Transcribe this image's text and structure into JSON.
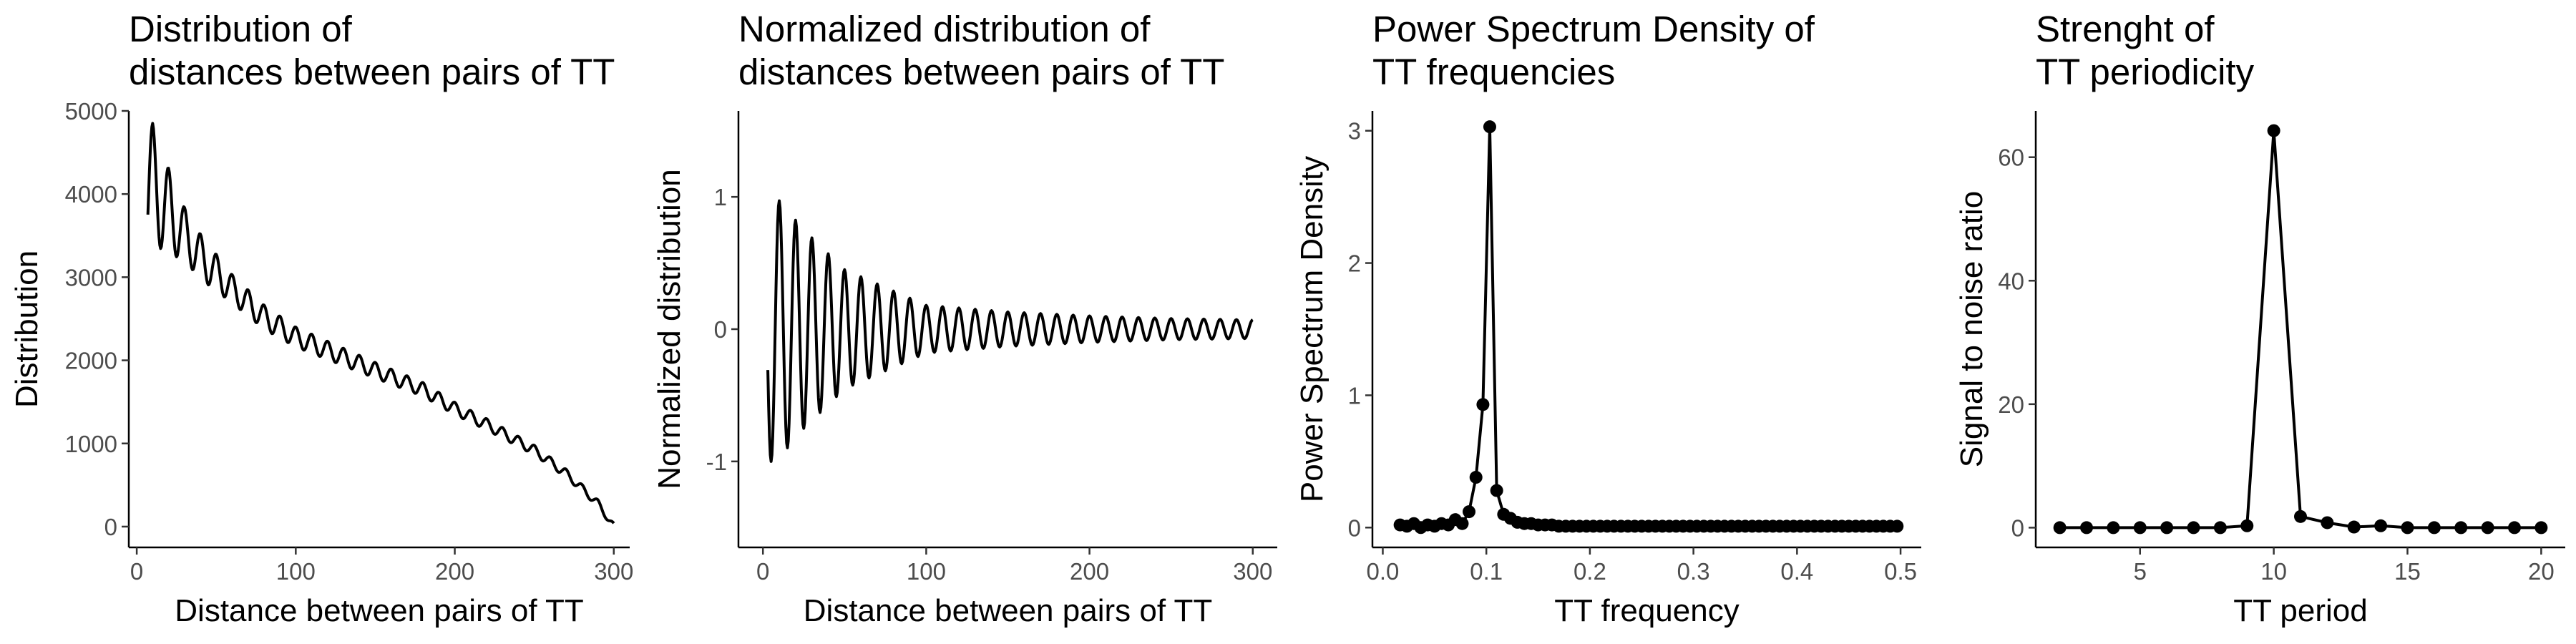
{
  "chart_data": [
    {
      "type": "line",
      "title": [
        "Distribution of",
        "distances between pairs of TT"
      ],
      "xlabel": "Distance between pairs of TT",
      "ylabel": "Distribution",
      "xlim": [
        -5,
        310
      ],
      "ylim": [
        -250,
        5000
      ],
      "xticks": [
        0,
        100,
        200,
        300
      ],
      "yticks": [
        0,
        1000,
        2000,
        3000,
        4000,
        5000
      ],
      "series": [
        {
          "trend_x": [
            7,
            10,
            15,
            20,
            30,
            40,
            60,
            80,
            100,
            120,
            150,
            180,
            200,
            220,
            250,
            270,
            290,
            300
          ],
          "trend_y": [
            4000,
            4150,
            3950,
            3800,
            3520,
            3250,
            2860,
            2520,
            2280,
            2120,
            1880,
            1650,
            1420,
            1230,
            920,
            640,
            280,
            0
          ],
          "oscillation": {
            "period": 10,
            "phase_x": 10,
            "amplitude_x": [
              7,
              10,
              30,
              60,
              100,
              150,
              200,
              260,
              300
            ],
            "amplitude_y": [
              800,
              700,
              320,
              170,
              120,
              95,
              75,
              55,
              40
            ]
          }
        }
      ]
    },
    {
      "type": "line",
      "title": [
        "Normalized distribution of",
        "distances between pairs of TT"
      ],
      "xlabel": "Distance between pairs of TT",
      "ylabel": "Normalized distribution",
      "xlim": [
        -15,
        315
      ],
      "ylim": [
        -1.65,
        1.65
      ],
      "xticks": [
        0,
        100,
        200,
        300
      ],
      "yticks": [
        -1,
        0,
        1
      ],
      "series": [
        {
          "trend_x": [
            3,
            300
          ],
          "trend_y": [
            0.0,
            0.0
          ],
          "oscillation": {
            "period": 10,
            "phase_x": 10,
            "amplitude_x": [
              3,
              8,
              25,
              50,
              100,
              150,
              200,
              250,
              300
            ],
            "amplitude_y": [
              1.0,
              1.0,
              0.75,
              0.45,
              0.18,
              0.13,
              0.1,
              0.08,
              0.07
            ]
          }
        }
      ]
    },
    {
      "type": "line",
      "title": [
        "Power Spectrum Density of",
        "TT frequencies"
      ],
      "xlabel": "TT frequency",
      "ylabel": "Power Spectrum Density",
      "xlim": [
        -0.01,
        0.52
      ],
      "ylim": [
        -0.15,
        3.15
      ],
      "xticks": [
        0.0,
        0.1,
        0.2,
        0.3,
        0.4,
        0.5
      ],
      "yticks": [
        0,
        1,
        2,
        3
      ],
      "markers": true,
      "series": [
        {
          "x": [
            0.0167,
            0.0233,
            0.03,
            0.0367,
            0.0433,
            0.05,
            0.0567,
            0.0633,
            0.07,
            0.0767,
            0.0833,
            0.09,
            0.0967,
            0.1033,
            0.11,
            0.1167,
            0.1233,
            0.13,
            0.1367,
            0.1433,
            0.15,
            0.1567,
            0.1633,
            0.17,
            0.1767,
            0.1833,
            0.19,
            0.1967,
            0.2033,
            0.21,
            0.2167,
            0.2233,
            0.23,
            0.2367,
            0.2433,
            0.25,
            0.2567,
            0.2633,
            0.27,
            0.2767,
            0.2833,
            0.29,
            0.2967,
            0.3033,
            0.31,
            0.3167,
            0.3233,
            0.33,
            0.3367,
            0.3433,
            0.35,
            0.3567,
            0.3633,
            0.37,
            0.3767,
            0.3833,
            0.39,
            0.3967,
            0.4033,
            0.41,
            0.4167,
            0.4233,
            0.43,
            0.4367,
            0.4433,
            0.45,
            0.4567,
            0.4633,
            0.47,
            0.4767,
            0.4833,
            0.49,
            0.4967
          ],
          "y": [
            0.02,
            0.01,
            0.03,
            0.0,
            0.02,
            0.01,
            0.03,
            0.02,
            0.06,
            0.03,
            0.12,
            0.38,
            0.93,
            3.03,
            0.28,
            0.1,
            0.07,
            0.04,
            0.03,
            0.03,
            0.02,
            0.02,
            0.02,
            0.01,
            0.01,
            0.01,
            0.01,
            0.01,
            0.01,
            0.01,
            0.01,
            0.01,
            0.01,
            0.01,
            0.01,
            0.01,
            0.01,
            0.01,
            0.01,
            0.01,
            0.01,
            0.01,
            0.01,
            0.01,
            0.01,
            0.01,
            0.01,
            0.01,
            0.01,
            0.01,
            0.01,
            0.01,
            0.01,
            0.01,
            0.01,
            0.01,
            0.01,
            0.01,
            0.01,
            0.01,
            0.01,
            0.01,
            0.01,
            0.01,
            0.01,
            0.01,
            0.01,
            0.01,
            0.01,
            0.01,
            0.01,
            0.01,
            0.01
          ]
        }
      ]
    },
    {
      "type": "line",
      "title": [
        "Strenght of",
        "TT periodicity"
      ],
      "xlabel": "TT period",
      "ylabel": "Signal to noise ratio",
      "xlim": [
        1.1,
        20.9
      ],
      "ylim": [
        -3.2,
        67.5
      ],
      "xticks": [
        5,
        10,
        15,
        20
      ],
      "yticks": [
        0,
        20,
        40,
        60
      ],
      "markers": true,
      "series": [
        {
          "x": [
            2,
            3,
            4,
            5,
            6,
            7,
            8,
            9,
            10,
            11,
            12,
            13,
            14,
            15,
            16,
            17,
            18,
            19,
            20
          ],
          "y": [
            0.0,
            0.0,
            0.0,
            0.0,
            0.0,
            0.0,
            0.0,
            0.3,
            64.3,
            1.8,
            0.8,
            0.1,
            0.3,
            0.0,
            0.0,
            0.0,
            0.0,
            0.0,
            0.0
          ]
        }
      ]
    }
  ]
}
